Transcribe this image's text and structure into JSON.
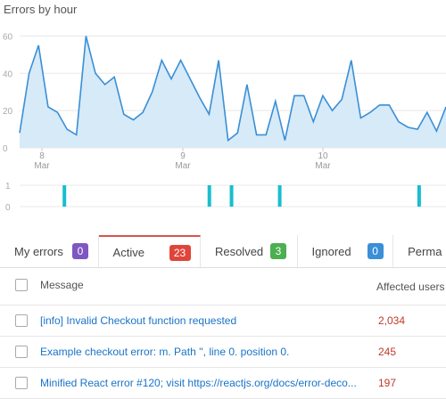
{
  "chart_data": [
    {
      "type": "area",
      "title": "Errors by hour",
      "y_ticks": [
        "0",
        "20",
        "40",
        "60"
      ],
      "ylim": [
        0,
        65
      ],
      "x_labels": [
        {
          "day": "8",
          "month": "Mar"
        },
        {
          "day": "9",
          "month": "Mar"
        },
        {
          "day": "10",
          "month": "Mar"
        }
      ],
      "grid": true,
      "fill_color": "#d6eaf8",
      "line_color": "#3a8fd6",
      "values": [
        8,
        40,
        55,
        22,
        19,
        10,
        7,
        60,
        40,
        34,
        38,
        18,
        15,
        19,
        30,
        47,
        37,
        47,
        37,
        27,
        18,
        47,
        4,
        8,
        34,
        7,
        7,
        25,
        4,
        28,
        28,
        14,
        28,
        20,
        26,
        47,
        16,
        19,
        23,
        23,
        14,
        11,
        10,
        19,
        9,
        22
      ]
    },
    {
      "type": "bar",
      "y_ticks": [
        "1",
        "0"
      ],
      "color": "#17becf",
      "events": [
        0.105,
        0.445,
        0.497,
        0.61,
        0.937
      ]
    }
  ],
  "tabs": [
    {
      "label": "My errors",
      "count": "0",
      "color": "#7e57c2"
    },
    {
      "label": "Active",
      "count": "23",
      "color": "#e0453a"
    },
    {
      "label": "Resolved",
      "count": "3",
      "color": "#4caf50"
    },
    {
      "label": "Ignored",
      "count": "0",
      "color": "#3a8fd6"
    },
    {
      "label": "Perma",
      "count": "",
      "color": ""
    }
  ],
  "table": {
    "header_message": "Message",
    "header_affected": "Affected users",
    "rows": [
      {
        "message": "[info] Invalid Checkout function requested",
        "affected": "2,034"
      },
      {
        "message": "Example checkout error: m. Path '', line 0. position 0.",
        "affected": "245"
      },
      {
        "message": "Minified React error #120; visit https://reactjs.org/docs/error-deco...",
        "affected": "197"
      }
    ]
  }
}
